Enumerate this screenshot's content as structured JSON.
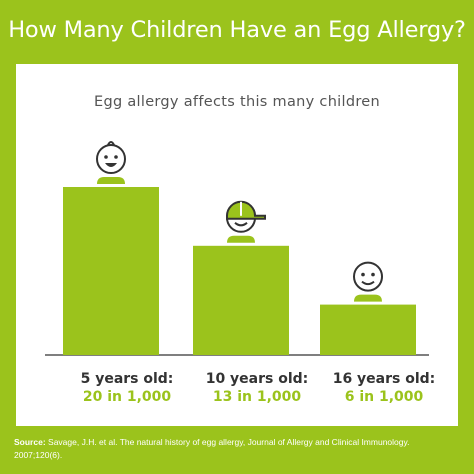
{
  "title": "How Many Children Have an Egg Allergy?",
  "colors": {
    "accent": "#9bc31c",
    "panel": "#ffffff",
    "text": "#333333"
  },
  "chart_data": {
    "type": "bar",
    "subtitle": "Egg allergy affects this many children",
    "categories": [
      "5 years old:",
      "10 years old:",
      "16 years old:"
    ],
    "value_labels": [
      "20 in 1,000",
      "13 in 1,000",
      "6 in 1,000"
    ],
    "values": [
      20,
      13,
      6
    ],
    "icons": [
      "smiling-child-icon",
      "child-with-cap-icon",
      "teen-face-icon"
    ],
    "xlabel": "",
    "ylabel": "",
    "ylim": [
      0,
      20
    ],
    "grid": false,
    "legend": "none"
  },
  "source": {
    "label": "Source:",
    "text": "Savage, J.H. et al. The natural history of egg allergy, Journal of Allergy and Clinical Immunology. 2007;120(6)."
  }
}
